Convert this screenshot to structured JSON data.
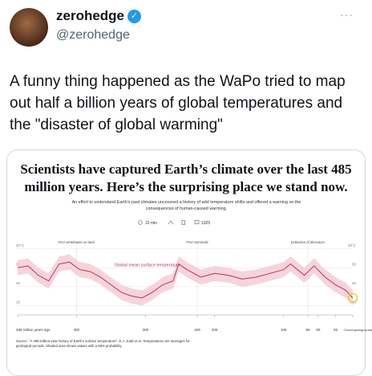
{
  "tweet": {
    "author": {
      "name": "zerohedge",
      "handle": "@zerohedge"
    },
    "text": "A funny thing happened as the WaPo tried to map out half a billion years of global temperatures and the \"disaster of global warming\"",
    "media": {
      "headline": "Scientists have captured Earth’s climate over the last 485 million years. Here’s the surprising place we stand now.",
      "subheadline": "An effort to understand Earth’s past climates uncovered a history of wild temperature shifts and offered a warning on the consequences of human-caused warming.",
      "read_time": "10 min",
      "comments": "1325",
      "chart_data": {
        "type": "line",
        "series_label": "Global mean surface temperature",
        "color": "#c2305a",
        "band_color": "#f4c9d3",
        "x": [
          485,
          470,
          455,
          440,
          425,
          410,
          395,
          380,
          365,
          350,
          335,
          320,
          305,
          290,
          275,
          260,
          252,
          240,
          220,
          200,
          180,
          160,
          140,
          120,
          100,
          90,
          70,
          56,
          40,
          25,
          10,
          0
        ],
        "values": [
          30,
          31,
          26,
          23,
          32,
          33,
          29,
          28,
          25,
          21,
          17,
          15,
          14,
          17,
          21,
          23,
          32,
          29,
          25,
          27,
          26,
          24,
          25,
          27,
          29,
          32,
          26,
          31,
          25,
          21,
          18,
          14
        ],
        "lower": [
          26,
          27,
          22,
          19,
          28,
          29,
          25,
          24,
          21,
          17,
          13,
          11,
          10,
          13,
          17,
          19,
          28,
          25,
          21,
          23,
          22,
          20,
          21,
          23,
          25,
          28,
          22,
          27,
          21,
          17,
          14,
          10
        ],
        "upper": [
          34,
          35,
          30,
          27,
          36,
          37,
          33,
          32,
          29,
          25,
          21,
          19,
          18,
          21,
          25,
          27,
          36,
          33,
          29,
          31,
          30,
          28,
          29,
          31,
          33,
          36,
          30,
          35,
          29,
          25,
          22,
          18
        ],
        "xlim": [
          485,
          0
        ],
        "ylim": [
          5,
          45
        ],
        "xticks": [
          {
            "value": 485,
            "label": "485 million years ago"
          },
          400,
          300,
          225,
          200,
          100,
          65,
          50,
          25,
          {
            "value": 0,
            "label": "Current geological stage"
          }
        ],
        "yticks": [
          {
            "value": 40,
            "label": "40°C"
          },
          30,
          20,
          10
        ],
        "grid": true,
        "annotations": [
          {
            "text": "First vertebrates on land",
            "x": 400
          },
          {
            "text": "First mammals",
            "x": 225
          },
          {
            "text": "Extinction of dinosaurs",
            "x": 65
          }
        ]
      },
      "source": "Source: \"A 485-million-year history of Earth's surface temperature\", E.J. Judd et al. Temperatures are averages for geological periods. Shaded area shows values with a 68% probability."
    }
  }
}
